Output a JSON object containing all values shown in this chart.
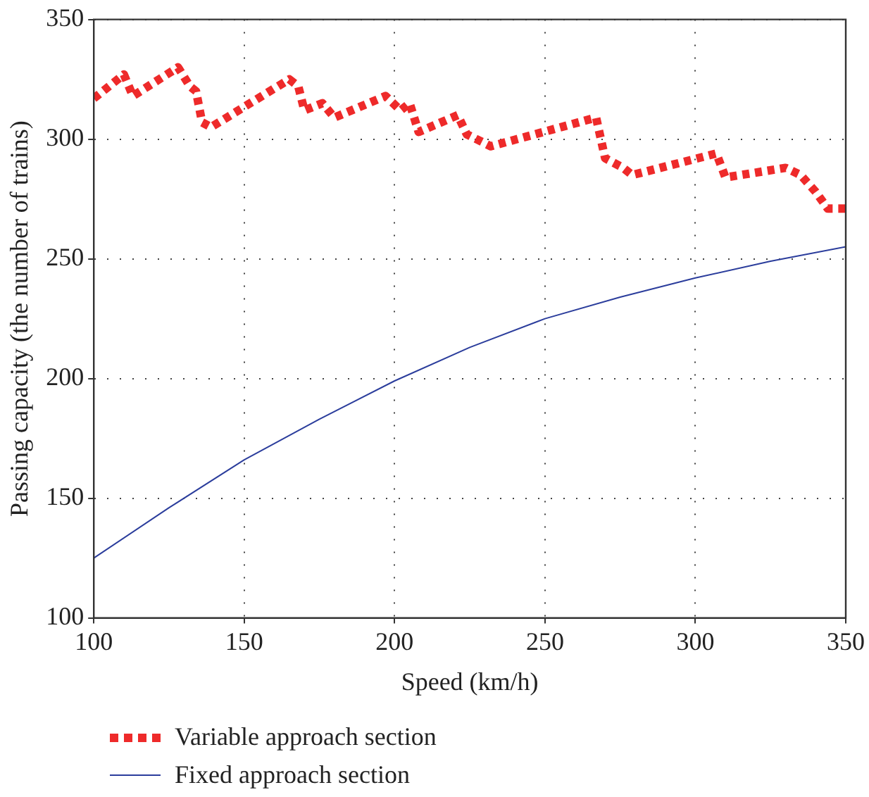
{
  "chart_data": {
    "type": "line",
    "xlabel": "Speed (km/h)",
    "ylabel": "Passing capacity (the number of trains)",
    "xlim": [
      100,
      350
    ],
    "xticks": [
      100,
      150,
      200,
      250,
      300,
      350
    ],
    "ylim": [
      100,
      350
    ],
    "yticks": [
      100,
      150,
      200,
      250,
      300,
      350
    ],
    "grid": true,
    "legend": "bottom left",
    "series": [
      {
        "name": "Variable approach section",
        "color": "#ee2a2a",
        "line_style": "dotted",
        "x": [
          100,
          110,
          113,
          128,
          132,
          134,
          136,
          139,
          165,
          168,
          170,
          176,
          180,
          197,
          202,
          205,
          208,
          221,
          224,
          232,
          267,
          270,
          276,
          279,
          307,
          310,
          330,
          335,
          340,
          344,
          350
        ],
        "values": [
          317,
          327,
          318,
          330,
          322,
          320,
          307,
          305,
          325,
          322,
          312,
          315,
          309,
          318,
          312,
          315,
          303,
          310,
          302,
          297,
          309,
          292,
          288,
          285,
          294,
          284,
          288,
          285,
          278,
          271,
          271
        ]
      },
      {
        "name": "Fixed approach section",
        "color": "#2b3d9c",
        "line_style": "solid",
        "x": [
          100,
          125,
          150,
          175,
          200,
          225,
          250,
          275,
          300,
          325,
          350
        ],
        "values": [
          125,
          146,
          166,
          183,
          199,
          213,
          225,
          234,
          242,
          249,
          255
        ]
      }
    ]
  }
}
